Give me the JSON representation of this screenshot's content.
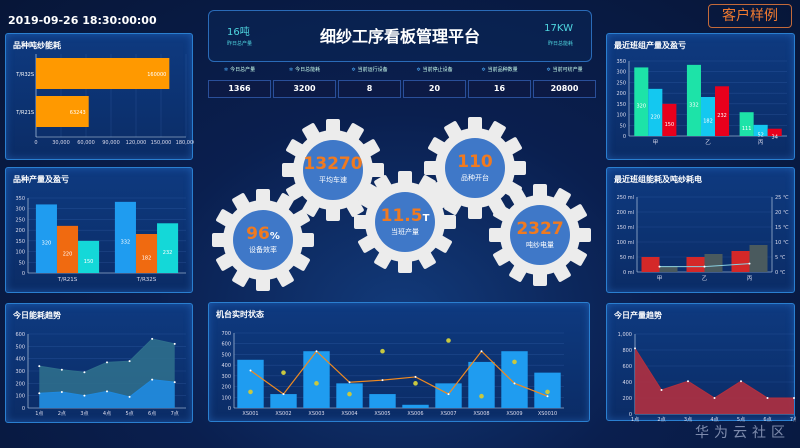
{
  "datetime": "2019-09-26 18:30:00:00",
  "brand": "客户样例",
  "header": {
    "title": "细纱工序看板管理平台",
    "left_value": "16吨",
    "left_label": "昨日总产量",
    "right_value": "17KW",
    "right_label": "昨日总能耗"
  },
  "kpis": [
    {
      "label": "今日总产量",
      "value": "1366"
    },
    {
      "label": "今日总能耗",
      "value": "3200"
    },
    {
      "label": "当前运行设备",
      "value": "8"
    },
    {
      "label": "当前停止设备",
      "value": "20"
    },
    {
      "label": "当前品种数量",
      "value": "16"
    },
    {
      "label": "当前可纺产量",
      "value": "20800"
    }
  ],
  "gears": [
    {
      "value": "96",
      "unit": "%",
      "label": "设备效率"
    },
    {
      "value": "13270",
      "unit": "",
      "label": "平均车速"
    },
    {
      "value": "11.5",
      "unit": "T",
      "label": "当班产量"
    },
    {
      "value": "110",
      "unit": "",
      "label": "品种开台"
    },
    {
      "value": "2327",
      "unit": "",
      "label": "吨纱电量"
    }
  ],
  "watermark": "华为云社区",
  "colors": {
    "orange": "#ff9900",
    "blue": "#1f9cf0",
    "cyan": "#14d8d8",
    "green": "#1de3a8",
    "red": "#e8001c",
    "accent_orange": "#f07a20"
  },
  "chart_data": [
    {
      "id": "c1",
      "title": "品种吨纱能耗",
      "type": "bar",
      "orientation": "horizontal",
      "categories": [
        "T/R32S",
        "T/R21S"
      ],
      "values": [
        160000,
        63243
      ],
      "data_labels": [
        "160000",
        "63243"
      ],
      "xlim": [
        0,
        180000
      ],
      "xticks": [
        "0",
        "30,000",
        "60,000",
        "90,000",
        "120,000",
        "150,000",
        "180,000"
      ],
      "color": "#ff9900"
    },
    {
      "id": "c2",
      "title": "品种产量及盈亏",
      "type": "bar",
      "categories": [
        "T/R21S",
        "T/R32S"
      ],
      "series": [
        {
          "values": [
            320,
            332
          ],
          "color": "#1f9cf0"
        },
        {
          "values": [
            220,
            182
          ],
          "color": "#f06a10"
        },
        {
          "values": [
            150,
            232
          ],
          "color": "#14d8d8"
        }
      ],
      "ylim": [
        0,
        350
      ],
      "yticks": [
        "0",
        "50",
        "100",
        "150",
        "200",
        "250",
        "300",
        "350"
      ]
    },
    {
      "id": "c3",
      "title": "今日能耗趋势",
      "type": "area",
      "categories": [
        "1点",
        "2点",
        "3点",
        "4点",
        "5点",
        "6点",
        "7点"
      ],
      "series": [
        {
          "values": [
            340,
            310,
            290,
            370,
            380,
            560,
            520
          ],
          "color": "#2e6e8c"
        },
        {
          "values": [
            120,
            130,
            100,
            135,
            90,
            230,
            210
          ],
          "color": "#1f8ae0"
        }
      ],
      "ylim": [
        0,
        600
      ],
      "yticks": [
        "0",
        "100",
        "200",
        "300",
        "400",
        "500",
        "600"
      ]
    },
    {
      "id": "c4",
      "title": "机台实时状态",
      "type": "bar+line+scatter",
      "categories": [
        "XS001",
        "XS002",
        "XS003",
        "XS004",
        "XS005",
        "XS006",
        "XS007",
        "XS008",
        "XS009",
        "XS0010"
      ],
      "bars": [
        450,
        130,
        530,
        230,
        130,
        30,
        230,
        430,
        530,
        330
      ],
      "line": [
        350,
        130,
        530,
        240,
        260,
        290,
        130,
        530,
        230,
        110
      ],
      "scatter": [
        150,
        330,
        230,
        130,
        530,
        230,
        630,
        110,
        430,
        150
      ],
      "ylim": [
        0,
        700
      ],
      "yticks": [
        "0",
        "100",
        "200",
        "300",
        "400",
        "500",
        "600",
        "700"
      ]
    },
    {
      "id": "c5",
      "title": "最近班组产量及盈亏",
      "type": "bar",
      "categories": [
        "甲",
        "乙",
        "丙"
      ],
      "series": [
        {
          "values": [
            320,
            332,
            111
          ],
          "color": "#1de3a8"
        },
        {
          "values": [
            220,
            182,
            52
          ],
          "color": "#14c8f0"
        },
        {
          "values": [
            150,
            232,
            34
          ],
          "color": "#e8001c"
        }
      ],
      "ylim": [
        0,
        350
      ],
      "yticks": [
        "0",
        "50",
        "100",
        "150",
        "200",
        "250",
        "300",
        "350"
      ]
    },
    {
      "id": "c6",
      "title": "最近班组能耗及吨纱耗电",
      "type": "bar+line",
      "categories": [
        "甲",
        "乙",
        "丙"
      ],
      "series": [
        {
          "values": [
            50,
            50,
            70
          ],
          "color": "#d42828"
        },
        {
          "values": [
            20,
            60,
            90
          ],
          "color": "#4a5a5e"
        }
      ],
      "line": [
        1.8,
        1.8,
        2.8
      ],
      "ylim": [
        0,
        250
      ],
      "y2lim": [
        0,
        25
      ],
      "yticks": [
        "0 ml",
        "50 ml",
        "100 ml",
        "150 ml",
        "200 ml",
        "250 ml"
      ],
      "y2ticks": [
        "0 ℃",
        "5 ℃",
        "10 ℃",
        "15 ℃",
        "20 ℃",
        "25 ℃"
      ]
    },
    {
      "id": "c7",
      "title": "今日产量趋势",
      "type": "area",
      "categories": [
        "1点",
        "2点",
        "3点",
        "4点",
        "5点",
        "6点",
        "7点"
      ],
      "series": [
        {
          "values": [
            820,
            300,
            410,
            200,
            410,
            200,
            200
          ],
          "color": "#b03040"
        }
      ],
      "ylim": [
        0,
        1000
      ],
      "yticks": [
        "0",
        "200",
        "400",
        "600",
        "800",
        "1,000"
      ]
    }
  ]
}
